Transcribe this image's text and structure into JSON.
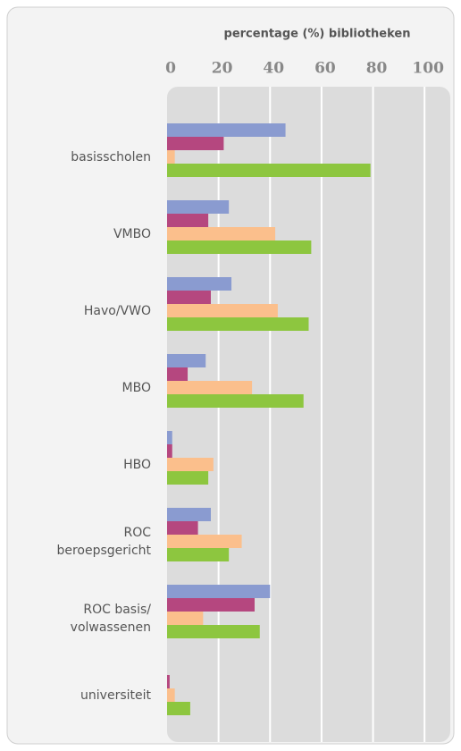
{
  "chart_data": {
    "type": "barh",
    "title": "percentage (%) bibliotheken",
    "categories": [
      "basisscholen",
      "VMBO",
      "Havo/VWO",
      "MBO",
      "HBO",
      "ROC\nberoepsgericht",
      "ROC basis/\nvolwassenen",
      "universiteit"
    ],
    "series": [
      {
        "color": "#8a9bd0",
        "values": [
          46,
          24,
          25,
          15,
          2,
          17,
          40,
          0
        ]
      },
      {
        "color": "#b5477f",
        "values": [
          22,
          16,
          17,
          8,
          2,
          12,
          34,
          1
        ]
      },
      {
        "color": "#fbbf8c",
        "values": [
          3,
          42,
          43,
          33,
          18,
          29,
          14,
          3
        ]
      },
      {
        "color": "#8dc63f",
        "values": [
          79,
          56,
          55,
          53,
          16,
          24,
          36,
          9
        ]
      }
    ],
    "xlim": [
      0,
      110
    ],
    "xticks": [
      0,
      20,
      40,
      60,
      80,
      100
    ],
    "grid": true
  }
}
